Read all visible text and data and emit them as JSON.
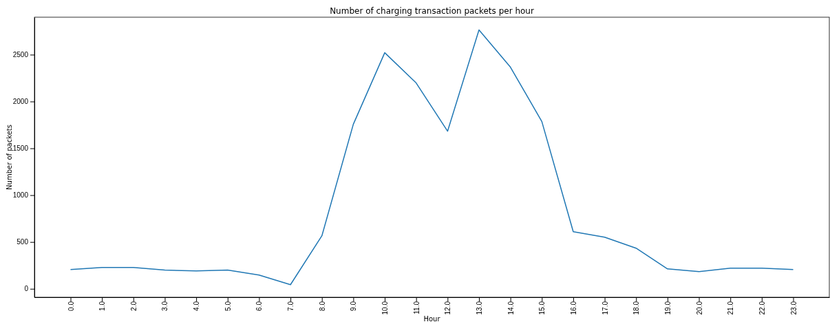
{
  "chart_data": {
    "type": "line",
    "title": "Number of charging transaction packets per hour",
    "xlabel": "Hour",
    "ylabel": "Number of packets",
    "x": [
      0,
      1,
      2,
      3,
      4,
      5,
      6,
      7,
      8,
      9,
      10,
      11,
      12,
      13,
      14,
      15,
      16,
      17,
      18,
      19,
      20,
      21,
      22,
      23
    ],
    "series": [
      {
        "color": "#1f77b4",
        "values": [
          206,
          228,
          228,
          200,
          191,
          200,
          147,
          44,
          566,
          1757,
          2521,
          2198,
          1683,
          2764,
          2367,
          1786,
          610,
          551,
          434,
          213,
          184,
          220,
          220,
          206
        ]
      }
    ],
    "xlim": [
      -1.15,
      24.15
    ],
    "xticks": [
      {
        "value": 0,
        "label": "0.0"
      },
      {
        "value": 1,
        "label": "1.0"
      },
      {
        "value": 2,
        "label": "2.0"
      },
      {
        "value": 3,
        "label": "3.0"
      },
      {
        "value": 4,
        "label": "4.0"
      },
      {
        "value": 5,
        "label": "5.0"
      },
      {
        "value": 6,
        "label": "6.0"
      },
      {
        "value": 7,
        "label": "7.0"
      },
      {
        "value": 8,
        "label": "8.0"
      },
      {
        "value": 9,
        "label": "9.0"
      },
      {
        "value": 10,
        "label": "10.0"
      },
      {
        "value": 11,
        "label": "11.0"
      },
      {
        "value": 12,
        "label": "12.0"
      },
      {
        "value": 13,
        "label": "13.0"
      },
      {
        "value": 14,
        "label": "14.0"
      },
      {
        "value": 15,
        "label": "15.0"
      },
      {
        "value": 16,
        "label": "16.0"
      },
      {
        "value": 17,
        "label": "17.0"
      },
      {
        "value": 18,
        "label": "18.0"
      },
      {
        "value": 19,
        "label": "19.0"
      },
      {
        "value": 20,
        "label": "20.0"
      },
      {
        "value": 21,
        "label": "21.0"
      },
      {
        "value": 22,
        "label": "22.0"
      },
      {
        "value": 23,
        "label": "23.0"
      }
    ],
    "ylim": [
      -90,
      2900
    ],
    "yticks": [
      0,
      500,
      1000,
      1500,
      2000,
      2500
    ],
    "grid": false,
    "marker": "none",
    "line_style": "solid"
  }
}
